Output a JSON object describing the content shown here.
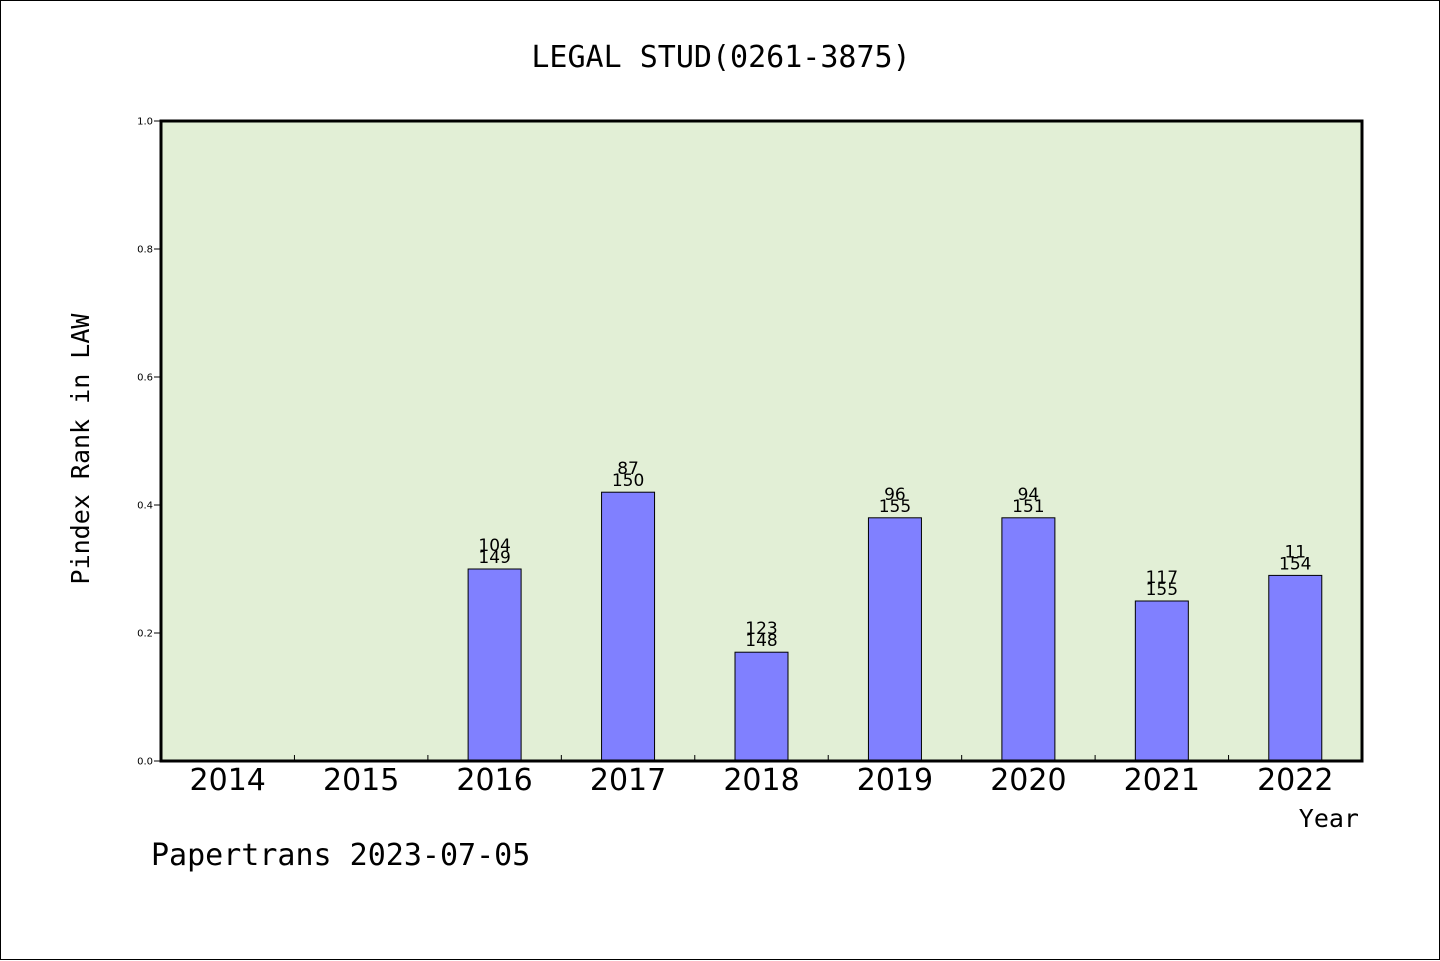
{
  "chart_data": {
    "type": "bar",
    "title": "LEGAL STUD(0261-3875)",
    "xlabel": "Year",
    "ylabel": "Pindex Rank in LAW",
    "ylim": [
      0,
      1.0
    ],
    "yticks": [
      "0.0",
      "0.2",
      "0.4",
      "0.6",
      "0.8",
      "1.0"
    ],
    "categories": [
      "2014",
      "2015",
      "2016",
      "2017",
      "2018",
      "2019",
      "2020",
      "2021",
      "2022"
    ],
    "values": [
      null,
      null,
      0.3,
      0.42,
      0.17,
      0.38,
      0.38,
      0.25,
      0.29
    ],
    "labels_top": [
      null,
      null,
      "104",
      "87",
      "123",
      "96",
      "94",
      "117",
      "11"
    ],
    "labels_bottom": [
      null,
      null,
      "149",
      "150",
      "148",
      "155",
      "151",
      "155",
      "154"
    ],
    "grid": false,
    "plot_background": "#e2efd6",
    "bar_color": "#8080ff"
  },
  "footer": "Papertrans 2023-07-05"
}
